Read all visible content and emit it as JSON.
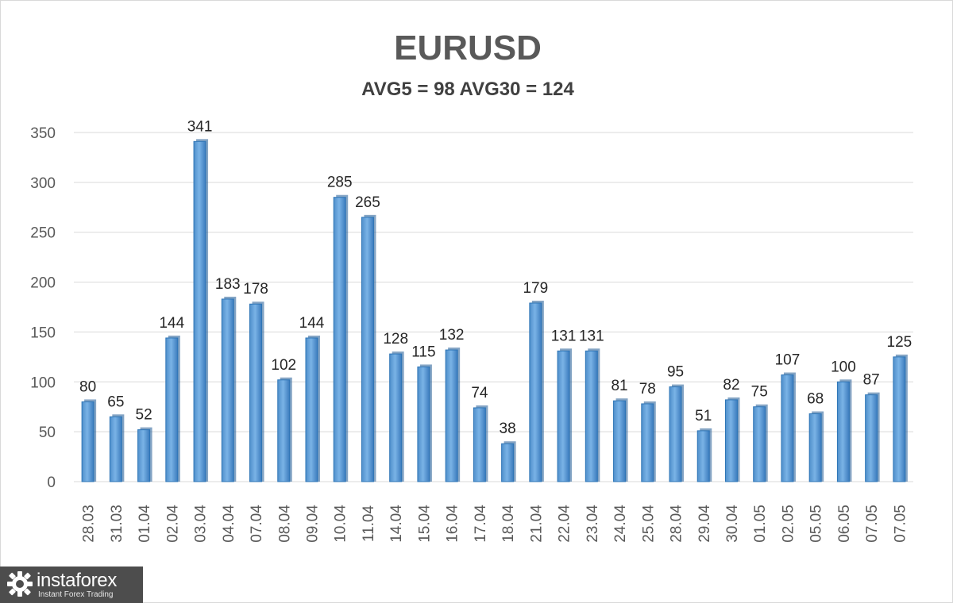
{
  "title": "EURUSD",
  "subtitle": "AVG5 = 98 AVG30 = 124",
  "logo": {
    "name": "instaforex",
    "tagline": "Instant Forex Trading"
  },
  "colors": {
    "bar_fill": "#5b9bd5",
    "bar_edge": "#2e75b6",
    "grid": "#d9d9d9",
    "title": "#595959",
    "text": "#404040"
  },
  "chart_data": {
    "type": "bar",
    "title": "EURUSD",
    "subtitle": "AVG5 = 98 AVG30 = 124",
    "categories": [
      "28.03",
      "31.03",
      "01.04",
      "02.04",
      "03.04",
      "04.04",
      "07.04",
      "08.04",
      "09.04",
      "10.04",
      "11.04",
      "14.04",
      "15.04",
      "16.04",
      "17.04",
      "18.04",
      "21.04",
      "22.04",
      "23.04",
      "24.04",
      "25.04",
      "28.04",
      "29.04",
      "30.04",
      "01.05",
      "02.05",
      "05.05",
      "06.05",
      "07.05",
      "07.05"
    ],
    "values": [
      80,
      65,
      52,
      144,
      341,
      183,
      178,
      102,
      144,
      285,
      265,
      128,
      115,
      132,
      74,
      38,
      179,
      131,
      131,
      81,
      78,
      95,
      51,
      82,
      75,
      107,
      68,
      100,
      87,
      125
    ],
    "ylim": [
      0,
      350
    ],
    "yticks": [
      0,
      50,
      100,
      150,
      200,
      250,
      300,
      350
    ],
    "grid": true,
    "data_labels": true,
    "legend": "none"
  }
}
